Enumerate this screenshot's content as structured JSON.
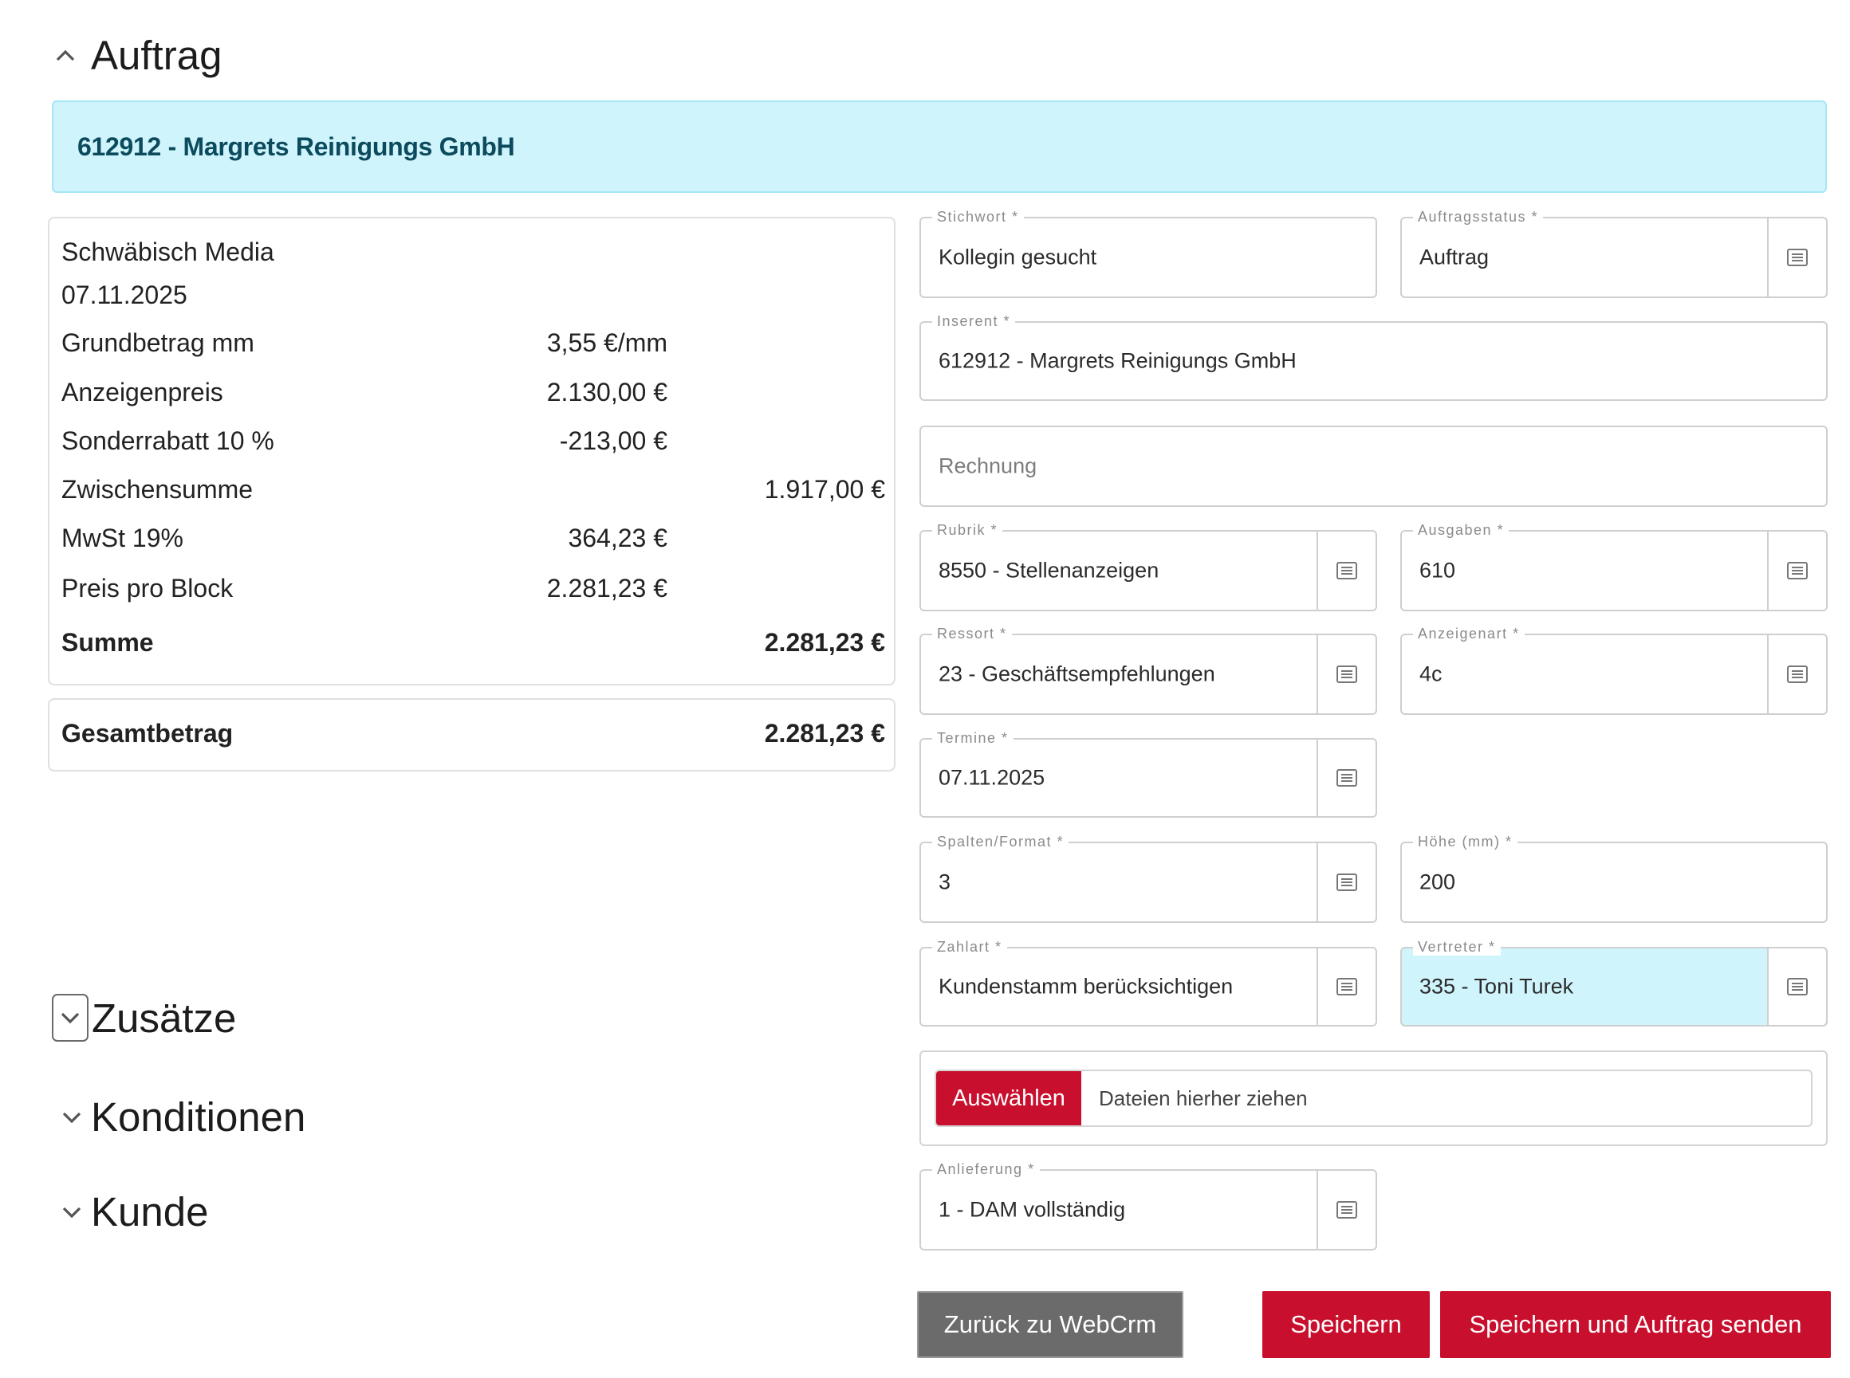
{
  "sections": {
    "auftrag": "Auftrag",
    "zusaetze": "Zusätze",
    "konditionen": "Konditionen",
    "kunde": "Kunde"
  },
  "banner": "612912 - Margrets Reinigungs GmbH",
  "summary": {
    "publisher": "Schwäbisch Media",
    "date": "07.11.2025",
    "lines": [
      {
        "label": "Grundbetrag mm",
        "value": "3,55 €/mm"
      },
      {
        "label": "Anzeigenpreis",
        "value": "2.130,00 €"
      },
      {
        "label": "Sonderrabatt 10 %",
        "value": "-213,00 €"
      },
      {
        "label": "Zwischensumme",
        "total": "1.917,00 €"
      },
      {
        "label": "MwSt 19%",
        "value": "364,23 €"
      },
      {
        "label": "Preis pro Block",
        "value": "2.281,23 €"
      }
    ],
    "sum_label": "Summe",
    "sum_value": "2.281,23 €",
    "grand_label": "Gesamtbetrag",
    "grand_value": "2.281,23 €"
  },
  "form": {
    "stichwort": {
      "label": "Stichwort *",
      "value": "Kollegin gesucht"
    },
    "auftragsstatus": {
      "label": "Auftragsstatus *",
      "value": "Auftrag"
    },
    "inserent": {
      "label": "Inserent *",
      "value": "612912 - Margrets Reinigungs GmbH"
    },
    "rechnung": {
      "placeholder": "Rechnung"
    },
    "rubrik": {
      "label": "Rubrik *",
      "value": "8550 - Stellenanzeigen"
    },
    "ausgaben": {
      "label": "Ausgaben *",
      "value": "610"
    },
    "ressort": {
      "label": "Ressort *",
      "value": "23 - Geschäftsempfehlungen"
    },
    "anzeigenart": {
      "label": "Anzeigenart *",
      "value": "4c"
    },
    "termine": {
      "label": "Termine *",
      "value": "07.11.2025"
    },
    "spalten": {
      "label": "Spalten/Format *",
      "value": "3"
    },
    "hoehe": {
      "label": "Höhe (mm) *",
      "value": "200"
    },
    "zahlart": {
      "label": "Zahlart *",
      "value": "Kundenstamm berücksichtigen"
    },
    "vertreter": {
      "label": "Vertreter *",
      "value": "335 - Toni Turek"
    },
    "upload": {
      "button": "Auswählen",
      "drop": "Dateien hierher ziehen"
    },
    "anlieferung": {
      "label": "Anlieferung *",
      "value": "1 - DAM vollständig"
    }
  },
  "buttons": {
    "back": "Zurück zu WebCrm",
    "save": "Speichern",
    "save_send": "Speichern und Auftrag senden"
  },
  "icons": {
    "chevron_up": "chevron-up-icon",
    "chevron_down": "chevron-down-icon",
    "lookup": "list-icon"
  },
  "colors": {
    "banner_bg": "#cff4fc",
    "accent_red": "#c8102e",
    "gray_button": "#6b6b6b"
  }
}
